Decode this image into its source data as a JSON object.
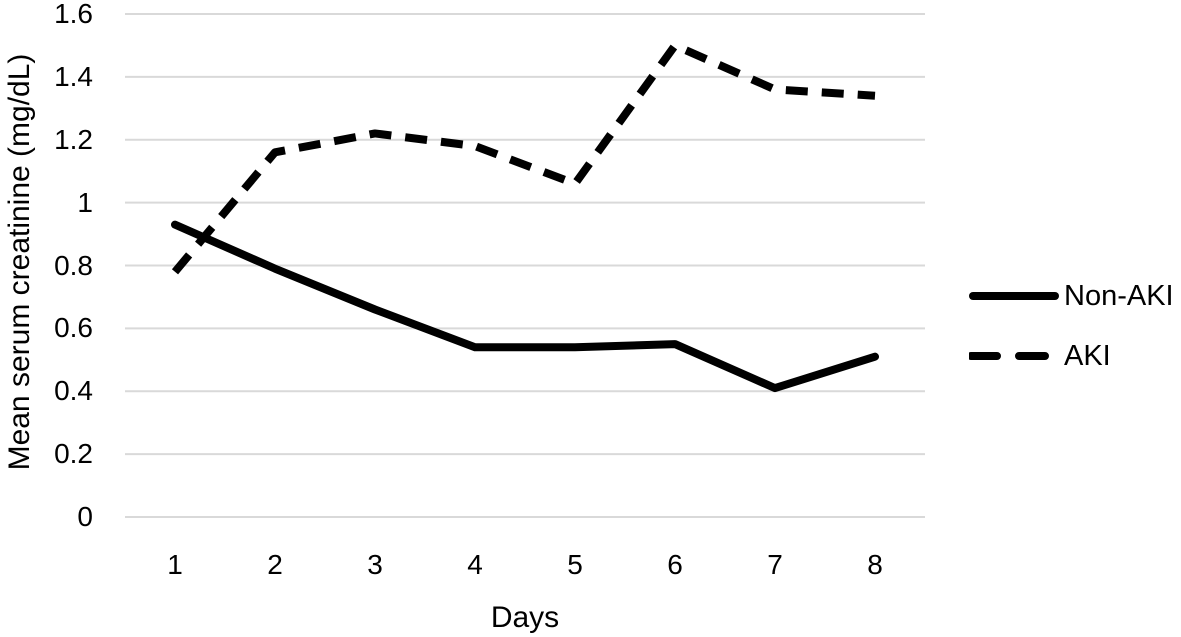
{
  "chart_data": {
    "type": "line",
    "title": "",
    "xlabel": "Days",
    "ylabel": "Mean serum creatinine (mg/dL)",
    "x_categories": [
      "1",
      "2",
      "3",
      "4",
      "5",
      "6",
      "7",
      "8"
    ],
    "series": [
      {
        "name": "Non-AKI",
        "line_style": "solid",
        "color": "#000000",
        "values": [
          0.93,
          0.79,
          0.66,
          0.54,
          0.54,
          0.55,
          0.41,
          0.51
        ]
      },
      {
        "name": "AKI",
        "line_style": "dashed",
        "color": "#000000",
        "values": [
          0.78,
          1.16,
          1.22,
          1.18,
          1.06,
          1.5,
          1.36,
          1.34
        ]
      }
    ],
    "ylim": [
      0,
      1.6
    ],
    "ytick_labels": [
      "0",
      "0.2",
      "0.4",
      "0.6",
      "0.8",
      "1",
      "1.2",
      "1.4",
      "1.6"
    ],
    "grid": "horizontal",
    "gridline_color": "#d9d9d9",
    "background_color": "#ffffff",
    "text_color": "#000000",
    "legend_position": "right"
  }
}
